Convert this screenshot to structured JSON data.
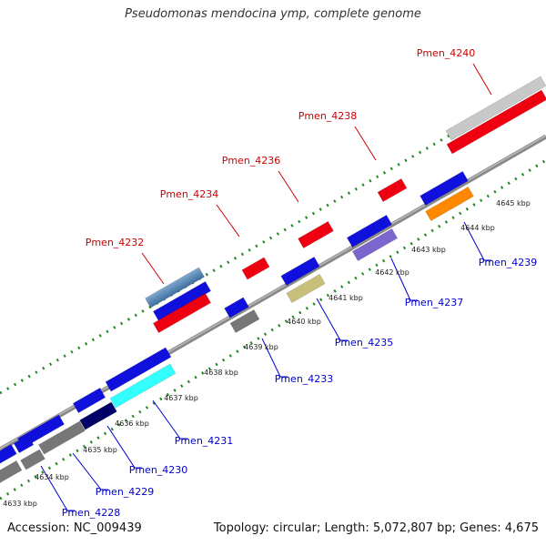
{
  "title": "Pseudomonas mendocina ymp, complete genome",
  "footer": {
    "accession": "Accession: NC_009439",
    "topology": "Topology: circular; Length: 5,072,807 bp; Genes: 4,675"
  },
  "colors": {
    "label_forward": "#cc0000",
    "label_reverse": "#0000cc",
    "backbone": "#888888",
    "tick_green": "#228822"
  },
  "kbp_ticks": [
    "4633 kbp",
    "4634 kbp",
    "4635 kbp",
    "4636 kbp",
    "4637 kbp",
    "4638 kbp",
    "4639 kbp",
    "4640 kbp",
    "4641 kbp",
    "4642 kbp",
    "4643 kbp",
    "4644 kbp",
    "4645 kbp"
  ],
  "gene_labels": {
    "forward": [
      "Pmen_4232",
      "Pmen_4234",
      "Pmen_4236",
      "Pmen_4238",
      "Pmen_4240"
    ],
    "reverse": [
      "Pmen_4228",
      "Pmen_4229",
      "Pmen_4230",
      "Pmen_4231",
      "Pmen_4233",
      "Pmen_4235",
      "Pmen_4237",
      "Pmen_4239"
    ]
  }
}
